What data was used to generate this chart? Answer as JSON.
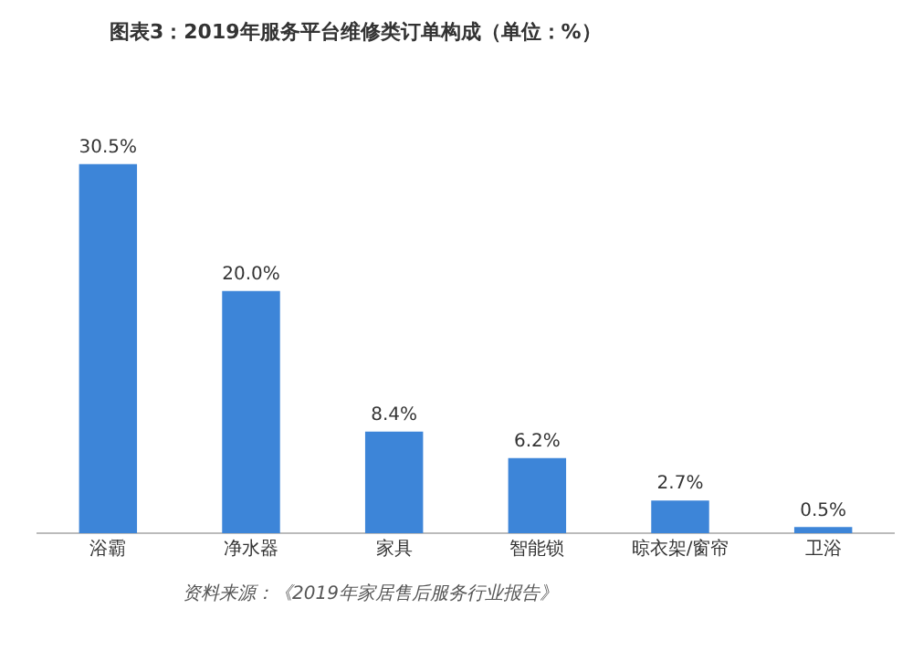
{
  "chart_data": {
    "type": "bar",
    "title": "图表3：2019年服务平台维修类订单构成（单位：%）",
    "categories": [
      "浴霸",
      "净水器",
      "家具",
      "智能锁",
      "晾衣架/窗帘",
      "卫浴"
    ],
    "values": [
      30.5,
      20.0,
      8.4,
      6.2,
      2.7,
      0.5
    ],
    "value_labels": [
      "30.5%",
      "20.0%",
      "8.4%",
      "6.2%",
      "2.7%",
      "0.5%"
    ],
    "color": "#3d85d8",
    "tick_labels": "x",
    "grid": false,
    "legend": false,
    "annotations": [
      "资料来源：《2019年家居售后服务行业报告》"
    ]
  }
}
